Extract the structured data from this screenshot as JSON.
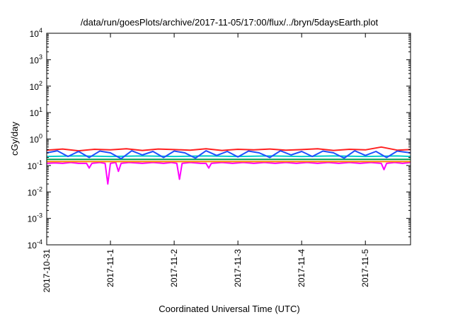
{
  "chart_data": {
    "type": "line",
    "title": "/data/run/goesPlots/archive/2017-11-05/17:00/flux/../bryn/5daysEarth.plot",
    "xlabel": "Coordinated Universal Time (UTC)",
    "ylabel": "cGy/day",
    "y_scale": "log",
    "ylim": [
      0.0001,
      10000
    ],
    "xlim": [
      "2017-10-31T00:00",
      "2017-11-05T17:00"
    ],
    "grid": false,
    "legend": "none",
    "x_ticks": [
      {
        "date": "2017-10-31T00:00",
        "label": "2017-10-31"
      },
      {
        "date": "2017-11-01T00:00",
        "label": "2017-11-1"
      },
      {
        "date": "2017-11-02T00:00",
        "label": "2017-11-2"
      },
      {
        "date": "2017-11-03T00:00",
        "label": "2017-11-3"
      },
      {
        "date": "2017-11-04T00:00",
        "label": "2017-11-4"
      },
      {
        "date": "2017-11-05T00:00",
        "label": "2017-11-5"
      }
    ],
    "y_ticks": [
      {
        "value": 0.0001,
        "base": "10",
        "exp": "-4"
      },
      {
        "value": 0.001,
        "base": "10",
        "exp": "-3"
      },
      {
        "value": 0.01,
        "base": "10",
        "exp": "-2"
      },
      {
        "value": 0.1,
        "base": "10",
        "exp": "-1"
      },
      {
        "value": 1,
        "base": "10",
        "exp": "0"
      },
      {
        "value": 10,
        "base": "10",
        "exp": "1"
      },
      {
        "value": 100,
        "base": "10",
        "exp": "2"
      },
      {
        "value": 1000,
        "base": "10",
        "exp": "3"
      },
      {
        "value": 10000,
        "base": "10",
        "exp": "4"
      }
    ],
    "series": [
      {
        "color": "#ff00ff",
        "x": [
          "2017-10-31T00:00",
          "2017-10-31T03:00",
          "2017-10-31T06:00",
          "2017-10-31T09:00",
          "2017-10-31T12:00",
          "2017-10-31T15:00",
          "2017-10-31T16:00",
          "2017-10-31T17:00",
          "2017-10-31T20:00",
          "2017-10-31T22:00",
          "2017-10-31T23:00",
          "2017-11-01T00:00",
          "2017-11-01T02:00",
          "2017-11-01T03:00",
          "2017-11-01T04:00",
          "2017-11-01T07:00",
          "2017-11-01T12:00",
          "2017-11-01T16:00",
          "2017-11-01T20:00",
          "2017-11-01T23:00",
          "2017-11-02T01:00",
          "2017-11-02T02:00",
          "2017-11-02T03:00",
          "2017-11-02T06:00",
          "2017-11-02T10:00",
          "2017-11-02T12:00",
          "2017-11-02T13:00",
          "2017-11-02T14:00",
          "2017-11-02T18:00",
          "2017-11-02T22:00",
          "2017-11-03T02:00",
          "2017-11-03T06:00",
          "2017-11-03T10:00",
          "2017-11-03T14:00",
          "2017-11-03T18:00",
          "2017-11-03T22:00",
          "2017-11-04T02:00",
          "2017-11-04T06:00",
          "2017-11-04T10:00",
          "2017-11-04T14:00",
          "2017-11-04T18:00",
          "2017-11-04T22:00",
          "2017-11-05T02:00",
          "2017-11-05T06:00",
          "2017-11-05T07:00",
          "2017-11-05T08:00",
          "2017-11-05T11:00",
          "2017-11-05T14:00",
          "2017-11-05T17:00"
        ],
        "y": [
          0.12,
          0.125,
          0.12,
          0.13,
          0.12,
          0.12,
          0.08,
          0.12,
          0.13,
          0.12,
          0.02,
          0.12,
          0.13,
          0.06,
          0.12,
          0.13,
          0.12,
          0.13,
          0.12,
          0.13,
          0.12,
          0.03,
          0.12,
          0.13,
          0.12,
          0.12,
          0.08,
          0.12,
          0.13,
          0.12,
          0.13,
          0.12,
          0.13,
          0.12,
          0.13,
          0.12,
          0.13,
          0.12,
          0.13,
          0.12,
          0.13,
          0.12,
          0.13,
          0.12,
          0.07,
          0.12,
          0.13,
          0.12,
          0.13
        ]
      },
      {
        "color": "#ff8c00",
        "x": [
          "2017-10-31T00:00",
          "2017-11-01T00:00",
          "2017-11-02T00:00",
          "2017-11-03T00:00",
          "2017-11-04T00:00",
          "2017-11-05T00:00",
          "2017-11-05T17:00"
        ],
        "y": [
          0.14,
          0.14,
          0.14,
          0.14,
          0.14,
          0.14,
          0.14
        ]
      },
      {
        "color": "#00a050",
        "x": [
          "2017-10-31T00:00",
          "2017-11-01T00:00",
          "2017-11-02T00:00",
          "2017-11-03T00:00",
          "2017-11-04T00:00",
          "2017-11-05T00:00",
          "2017-11-05T17:00"
        ],
        "y": [
          0.17,
          0.17,
          0.17,
          0.17,
          0.17,
          0.17,
          0.17
        ]
      },
      {
        "color": "#00cccc",
        "x": [
          "2017-10-31T00:00",
          "2017-10-31T12:00",
          "2017-11-01T00:00",
          "2017-11-01T12:00",
          "2017-11-02T00:00",
          "2017-11-02T12:00",
          "2017-11-03T00:00",
          "2017-11-03T12:00",
          "2017-11-04T00:00",
          "2017-11-04T12:00",
          "2017-11-05T00:00",
          "2017-11-05T12:00",
          "2017-11-05T17:00"
        ],
        "y": [
          0.22,
          0.23,
          0.22,
          0.23,
          0.22,
          0.23,
          0.22,
          0.23,
          0.22,
          0.23,
          0.22,
          0.23,
          0.22
        ]
      },
      {
        "color": "#ff2020",
        "x": [
          "2017-10-31T00:00",
          "2017-10-31T06:00",
          "2017-10-31T12:00",
          "2017-10-31T18:00",
          "2017-11-01T00:00",
          "2017-11-01T06:00",
          "2017-11-01T12:00",
          "2017-11-01T18:00",
          "2017-11-02T00:00",
          "2017-11-02T06:00",
          "2017-11-02T12:00",
          "2017-11-02T18:00",
          "2017-11-03T00:00",
          "2017-11-03T06:00",
          "2017-11-03T12:00",
          "2017-11-03T18:00",
          "2017-11-04T00:00",
          "2017-11-04T06:00",
          "2017-11-04T12:00",
          "2017-11-04T18:00",
          "2017-11-05T00:00",
          "2017-11-05T06:00",
          "2017-11-05T12:00",
          "2017-11-05T17:00"
        ],
        "y": [
          0.38,
          0.42,
          0.36,
          0.41,
          0.39,
          0.43,
          0.37,
          0.42,
          0.4,
          0.38,
          0.43,
          0.37,
          0.41,
          0.39,
          0.42,
          0.38,
          0.4,
          0.43,
          0.37,
          0.41,
          0.39,
          0.5,
          0.38,
          0.4
        ]
      },
      {
        "color": "#2050ff",
        "x": [
          "2017-10-31T00:00",
          "2017-10-31T04:00",
          "2017-10-31T08:00",
          "2017-10-31T12:00",
          "2017-10-31T16:00",
          "2017-10-31T20:00",
          "2017-11-01T00:00",
          "2017-11-01T04:00",
          "2017-11-01T08:00",
          "2017-11-01T12:00",
          "2017-11-01T16:00",
          "2017-11-01T20:00",
          "2017-11-02T00:00",
          "2017-11-02T04:00",
          "2017-11-02T08:00",
          "2017-11-02T12:00",
          "2017-11-02T16:00",
          "2017-11-02T20:00",
          "2017-11-03T00:00",
          "2017-11-03T04:00",
          "2017-11-03T08:00",
          "2017-11-03T12:00",
          "2017-11-03T16:00",
          "2017-11-03T20:00",
          "2017-11-04T00:00",
          "2017-11-04T04:00",
          "2017-11-04T08:00",
          "2017-11-04T12:00",
          "2017-11-04T16:00",
          "2017-11-04T20:00",
          "2017-11-05T00:00",
          "2017-11-05T04:00",
          "2017-11-05T08:00",
          "2017-11-05T12:00",
          "2017-11-05T17:00"
        ],
        "y": [
          0.3,
          0.36,
          0.22,
          0.34,
          0.2,
          0.35,
          0.3,
          0.18,
          0.36,
          0.25,
          0.34,
          0.2,
          0.35,
          0.3,
          0.19,
          0.36,
          0.24,
          0.34,
          0.21,
          0.35,
          0.3,
          0.2,
          0.36,
          0.25,
          0.34,
          0.22,
          0.35,
          0.3,
          0.19,
          0.36,
          0.24,
          0.34,
          0.2,
          0.35,
          0.3
        ]
      }
    ]
  }
}
